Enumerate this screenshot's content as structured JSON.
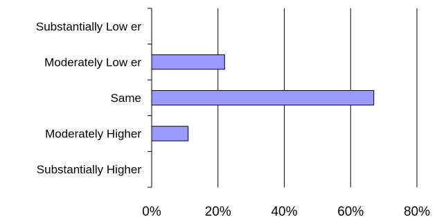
{
  "chart_data": {
    "type": "bar",
    "orientation": "horizontal",
    "categories": [
      "Substantially Low er",
      "Moderately Low er",
      "Same",
      "Moderately Higher",
      "Substantially Higher"
    ],
    "values": [
      0,
      22,
      67,
      11,
      0
    ],
    "x_ticks": [
      "0%",
      "20%",
      "40%",
      "60%",
      "80%"
    ],
    "xlim": [
      0,
      80
    ],
    "grid": true,
    "legend": "none",
    "bar_color": "#9999ff",
    "bar_edge_color": "#000000",
    "title": "",
    "xlabel": "",
    "ylabel": ""
  }
}
